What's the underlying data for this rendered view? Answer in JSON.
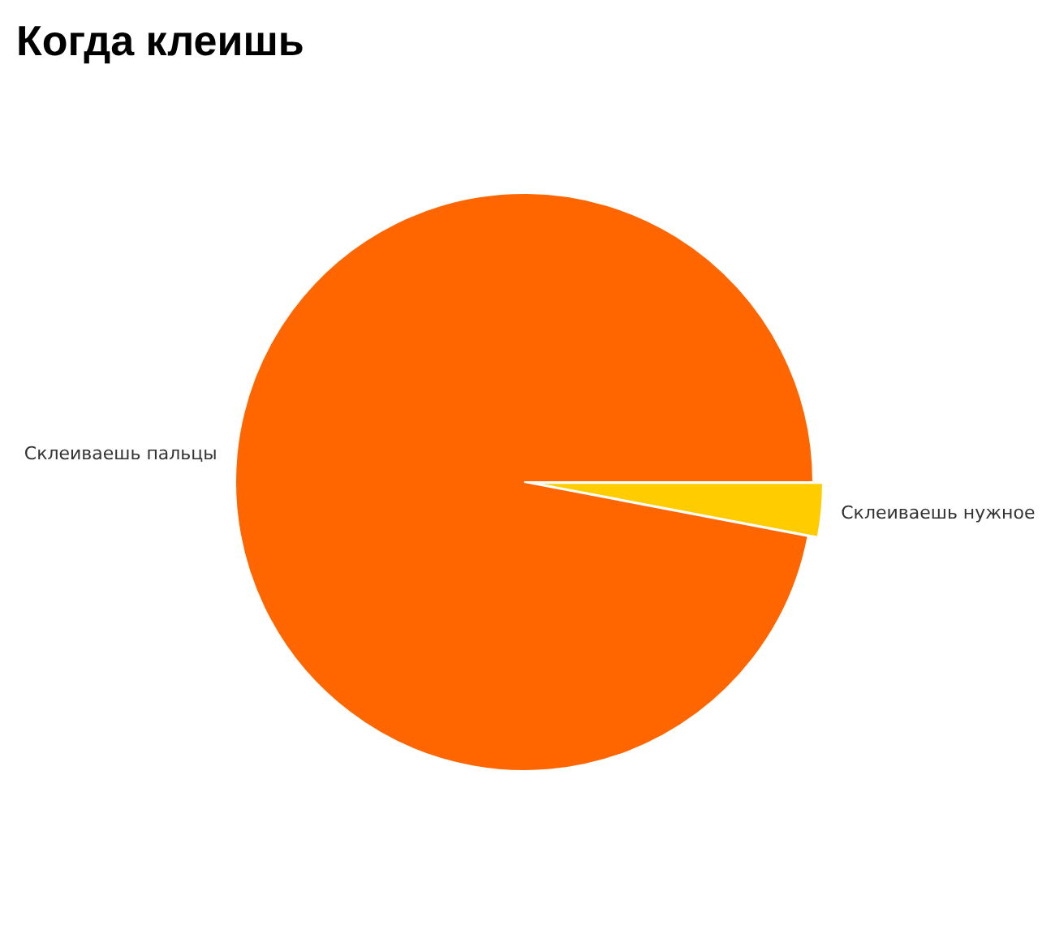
{
  "chart_data": {
    "type": "pie",
    "title": "Когда клеишь",
    "categories": [
      "Склеиваешь пальцы",
      "Склеиваешь нужное"
    ],
    "values": [
      97,
      3
    ],
    "colors": [
      "#ff6600",
      "#ffcc00"
    ]
  }
}
